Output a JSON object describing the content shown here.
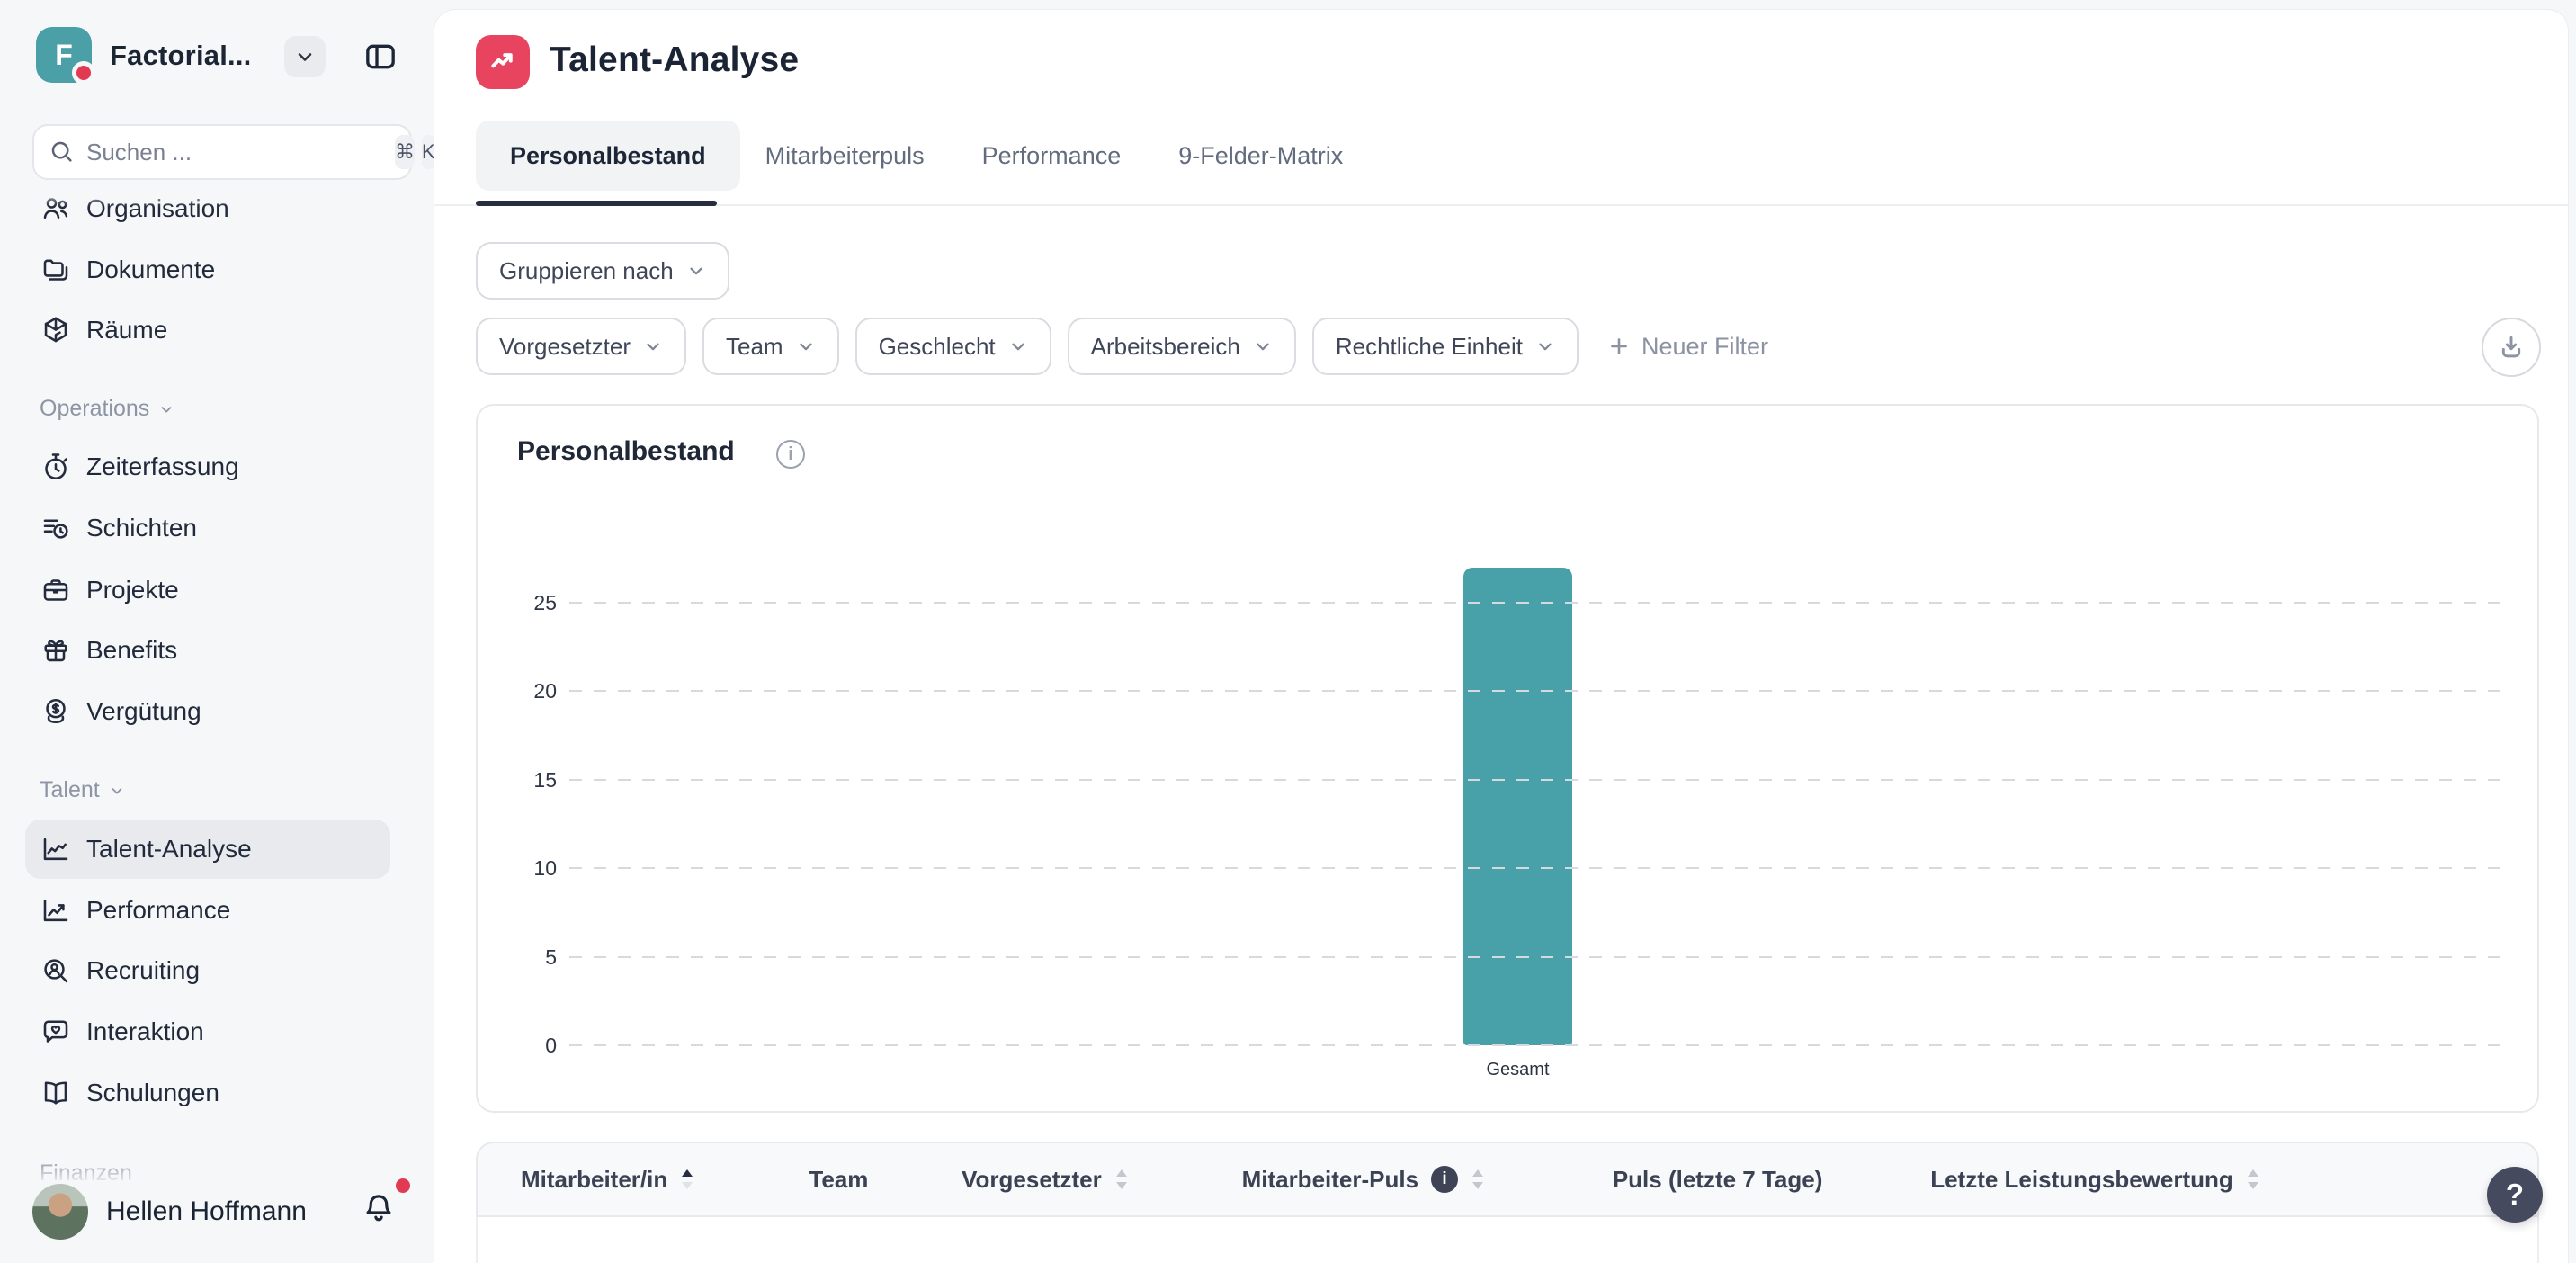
{
  "app": {
    "accent_teal": "#48A0A8",
    "accent_red": "#E8435F",
    "notification_red": "#E23A52"
  },
  "workspace": {
    "logo_letter": "F",
    "name": "Factorial...",
    "search": {
      "placeholder": "Suchen ...",
      "shortcut_keys": [
        "⌘",
        "K"
      ]
    }
  },
  "sidebar": {
    "sections": [
      {
        "label": "",
        "items": [
          {
            "label": "Organisation",
            "icon": "organisation-icon"
          },
          {
            "label": "Dokumente",
            "icon": "documents-icon"
          },
          {
            "label": "Räume",
            "icon": "rooms-icon"
          }
        ]
      },
      {
        "label": "Operations",
        "items": [
          {
            "label": "Zeiterfassung",
            "icon": "stopwatch-icon"
          },
          {
            "label": "Schichten",
            "icon": "shifts-icon"
          },
          {
            "label": "Projekte",
            "icon": "briefcase-icon"
          },
          {
            "label": "Benefits",
            "icon": "gift-icon"
          },
          {
            "label": "Vergütung",
            "icon": "money-icon"
          }
        ]
      },
      {
        "label": "Talent",
        "items": [
          {
            "label": "Talent-Analyse",
            "icon": "analytics-icon",
            "active": true
          },
          {
            "label": "Performance",
            "icon": "performance-icon"
          },
          {
            "label": "Recruiting",
            "icon": "recruiting-icon"
          },
          {
            "label": "Interaktion",
            "icon": "interaction-icon"
          },
          {
            "label": "Schulungen",
            "icon": "trainings-icon"
          }
        ]
      },
      {
        "label": "Finanzen",
        "items": []
      }
    ],
    "user": {
      "name": "Hellen Hoffmann"
    }
  },
  "header": {
    "title": "Talent-Analyse",
    "tabs": [
      {
        "label": "Personalbestand",
        "active": true
      },
      {
        "label": "Mitarbeiterpuls",
        "active": false
      },
      {
        "label": "Performance",
        "active": false
      },
      {
        "label": "9-Felder-Matrix",
        "active": false
      }
    ]
  },
  "toolbar": {
    "group_by_label": "Gruppieren nach",
    "filters": [
      "Vorgesetzter",
      "Team",
      "Geschlecht",
      "Arbeitsbereich",
      "Rechtliche Einheit"
    ],
    "new_filter_label": "Neuer Filter",
    "download_icon": "download-icon"
  },
  "chart_card": {
    "title": "Personalbestand"
  },
  "chart_data": {
    "type": "bar",
    "title": "Personalbestand",
    "categories": [
      "Gesamt"
    ],
    "values": [
      27
    ],
    "yticks": [
      0,
      5,
      10,
      15,
      20,
      25
    ],
    "ylim": [
      0,
      28
    ],
    "grid": true,
    "bar_color": "#48A0A8",
    "xlabel": "",
    "ylabel": ""
  },
  "table": {
    "columns": [
      {
        "label": "Mitarbeiter/in",
        "sort": "asc"
      },
      {
        "label": "Team",
        "sort": "none"
      },
      {
        "label": "Vorgesetzter",
        "sort": "both"
      },
      {
        "label": "Mitarbeiter-Puls",
        "sort": "both",
        "info": true
      },
      {
        "label": "Puls (letzte 7 Tage)",
        "sort": "none"
      },
      {
        "label": "Letzte Leistungsbewertung",
        "sort": "both"
      }
    ]
  },
  "help": {
    "label": "?"
  }
}
